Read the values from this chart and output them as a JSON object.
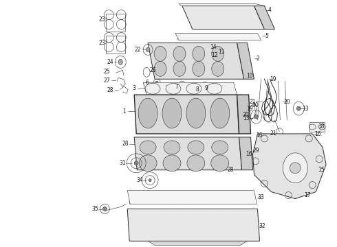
{
  "background_color": "#ffffff",
  "figsize": [
    4.9,
    3.6
  ],
  "dpi": 100,
  "line_color": "#2a2a2a",
  "label_color": "#1a1a1a",
  "label_fontsize": 5.5
}
